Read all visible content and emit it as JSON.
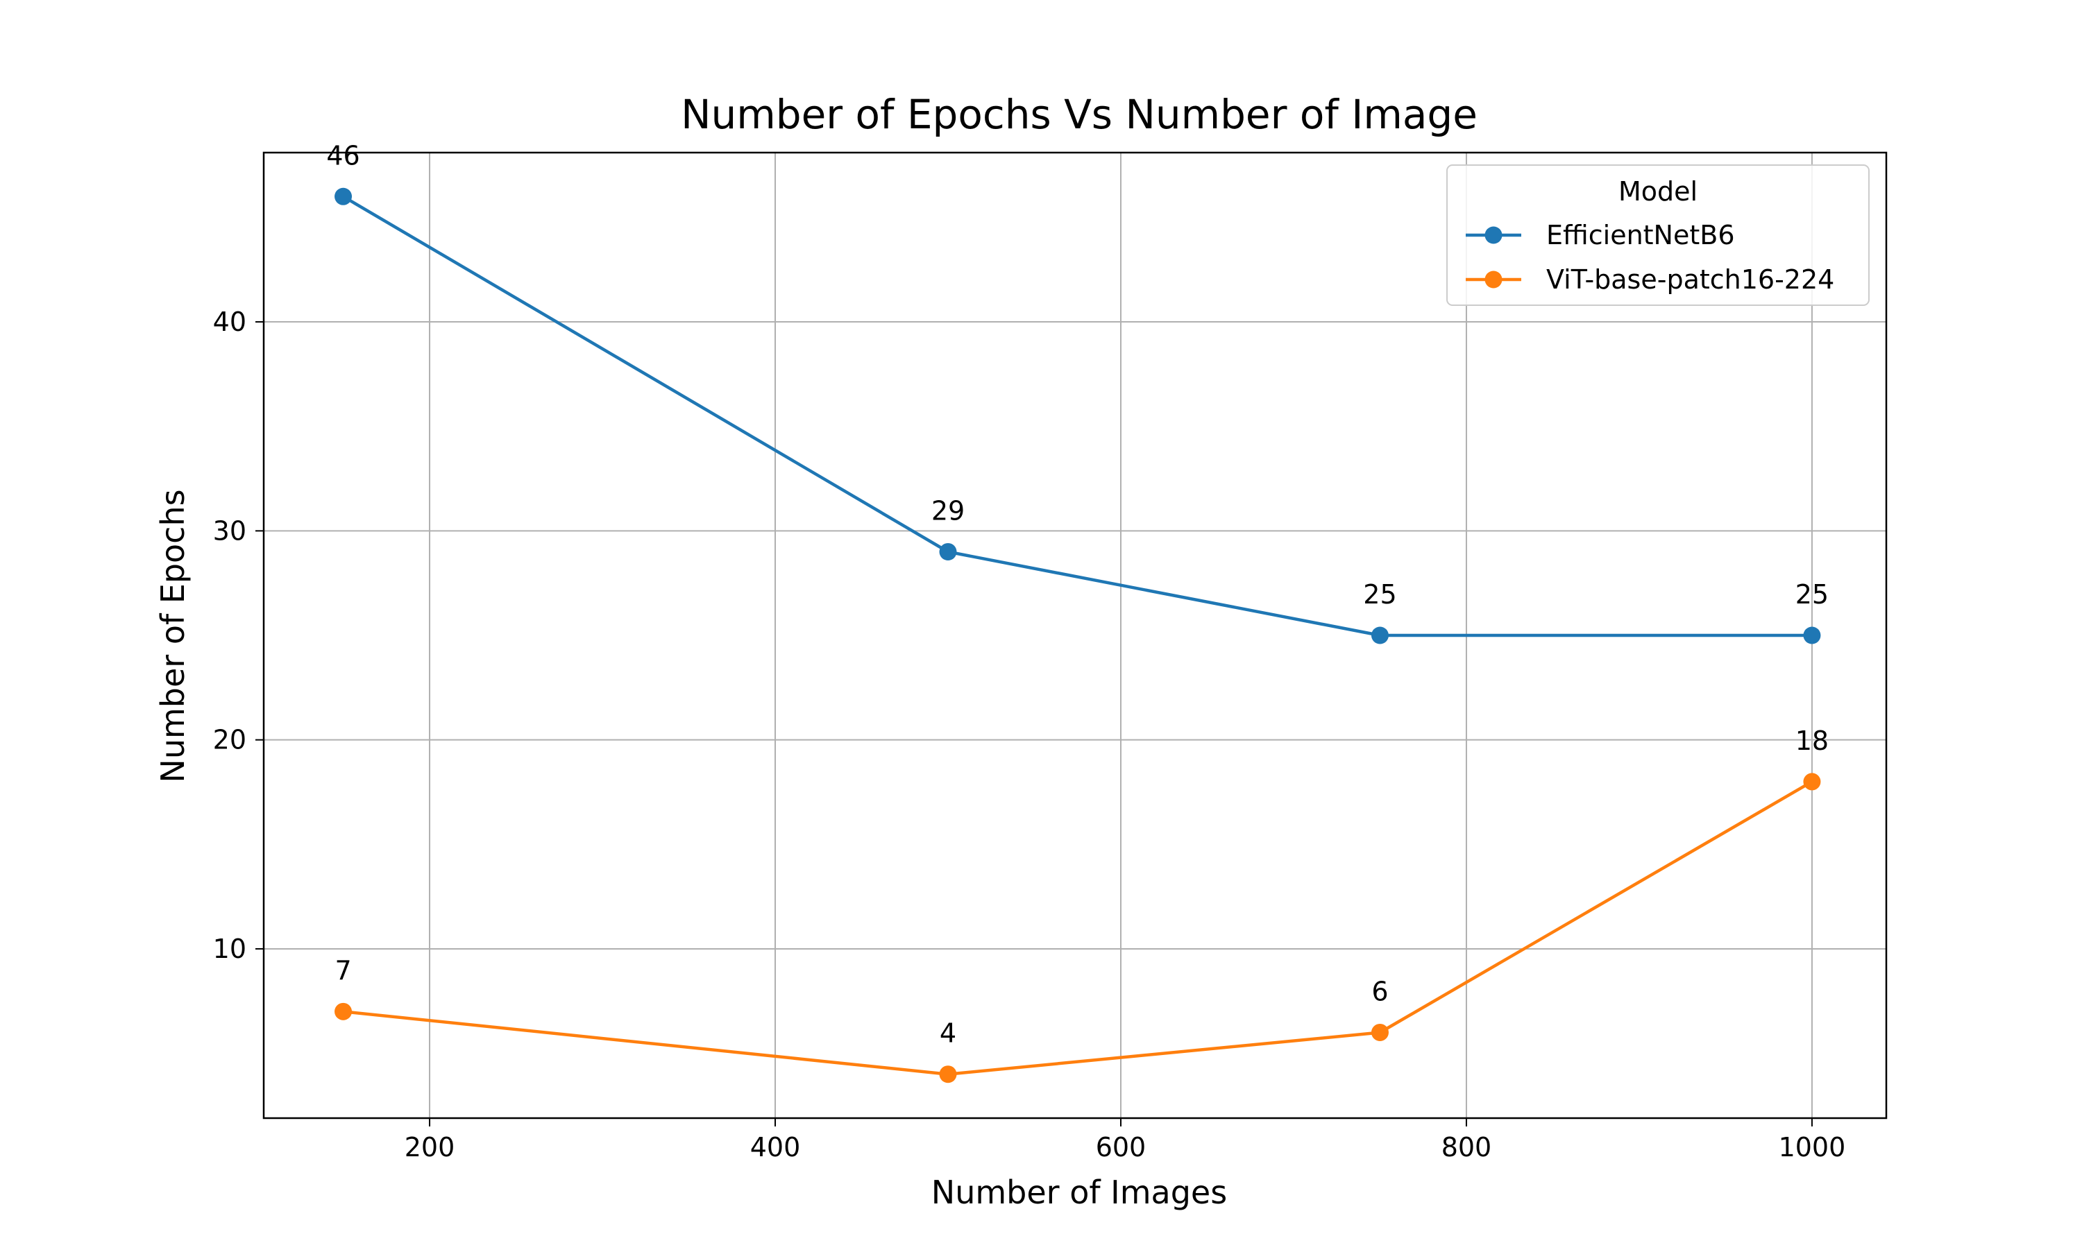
{
  "chart_data": {
    "type": "line",
    "title": "Number of Epochs Vs Number of Image",
    "xlabel": "Number of Images",
    "ylabel": "Number of Epochs",
    "xlim": [
      104,
      1043
    ],
    "ylim": [
      1.9,
      48.1
    ],
    "xticks": [
      200,
      400,
      600,
      800,
      1000
    ],
    "yticks": [
      10,
      20,
      30,
      40
    ],
    "grid": true,
    "legend": {
      "title": "Model",
      "position": "top-right"
    },
    "x": [
      150,
      500,
      750,
      1000
    ],
    "series": [
      {
        "name": "EfficientNetB6",
        "color": "#1f77b4",
        "values": [
          46,
          29,
          25,
          25
        ]
      },
      {
        "name": "ViT-base-patch16-224",
        "color": "#ff7f0e",
        "values": [
          7,
          4,
          6,
          18
        ]
      }
    ]
  }
}
